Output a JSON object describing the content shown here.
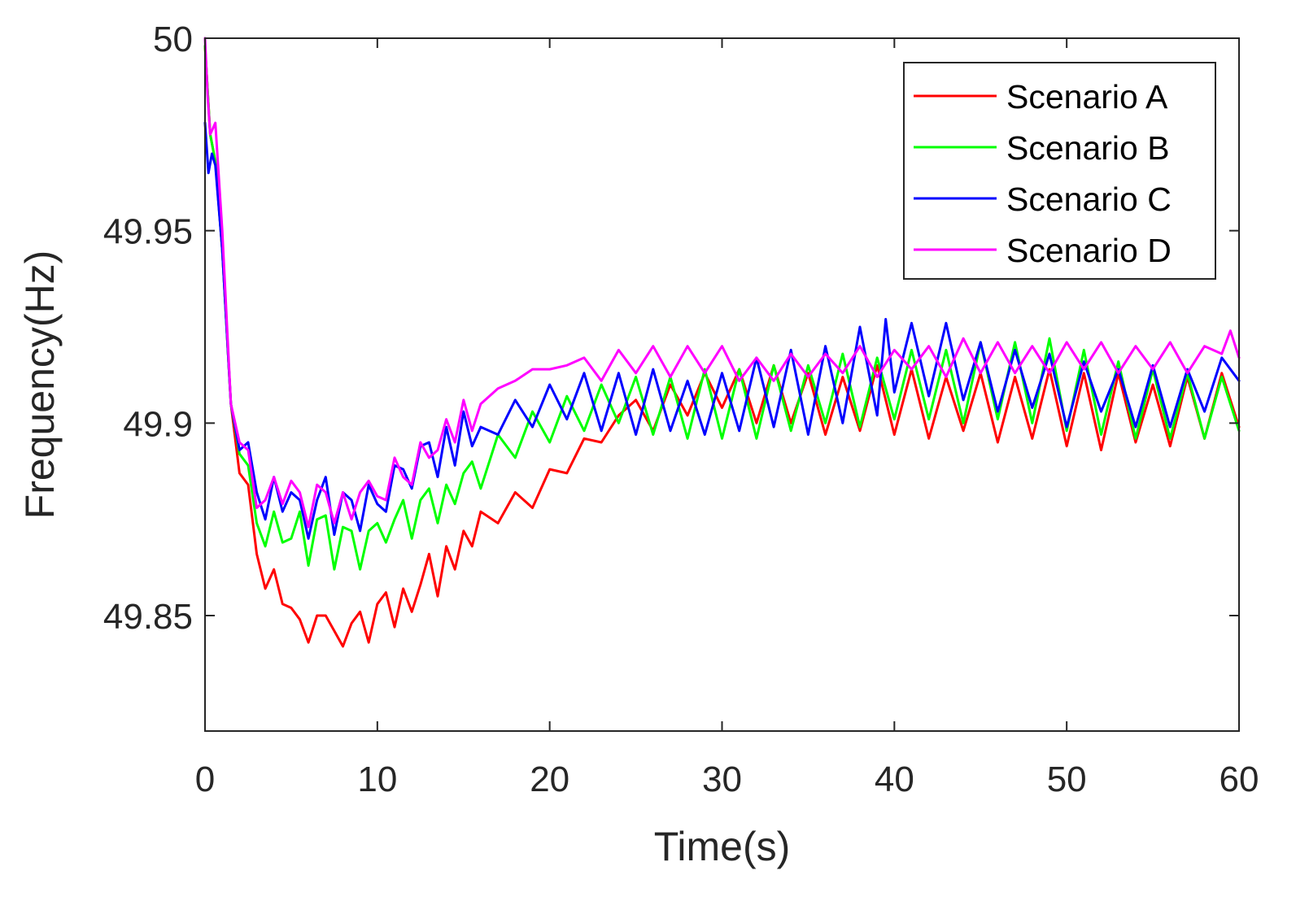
{
  "chart_data": {
    "type": "line",
    "title": "",
    "xlabel": "Time(s)",
    "ylabel": "Frequency(Hz)",
    "xlim": [
      0,
      60
    ],
    "ylim": [
      49.82,
      50
    ],
    "xticks": [
      0,
      10,
      20,
      30,
      40,
      50,
      60
    ],
    "xtick_labels": [
      "0",
      "10",
      "20",
      "30",
      "40",
      "50",
      "60"
    ],
    "yticks": [
      49.85,
      49.9,
      49.95,
      50
    ],
    "ytick_labels": [
      "49.85",
      "49.9",
      "49.95",
      "50"
    ],
    "grid": false,
    "legend_position": "top-right",
    "series": [
      {
        "name": "Scenario A",
        "color": "#ff0000",
        "x": [
          0,
          0.3,
          0.6,
          1.0,
          1.5,
          2.0,
          2.5,
          3.0,
          3.5,
          4.0,
          4.5,
          5.0,
          5.5,
          6.0,
          6.5,
          7.0,
          7.5,
          8.0,
          8.5,
          9.0,
          9.5,
          10.0,
          10.5,
          11.0,
          11.5,
          12.0,
          12.5,
          13.0,
          13.5,
          14.0,
          14.5,
          15.0,
          15.5,
          16.0,
          17.0,
          18.0,
          19.0,
          20.0,
          21.0,
          22.0,
          23.0,
          24.0,
          25.0,
          26.0,
          27.0,
          28.0,
          29.0,
          30.0,
          31.0,
          32.0,
          33.0,
          34.0,
          35.0,
          36.0,
          37.0,
          38.0,
          39.0,
          40.0,
          41.0,
          42.0,
          43.0,
          44.0,
          45.0,
          46.0,
          47.0,
          48.0,
          49.0,
          50.0,
          51.0,
          52.0,
          53.0,
          54.0,
          55.0,
          56.0,
          57.0,
          58.0,
          59.0,
          60.0
        ],
        "y": [
          49.998,
          49.975,
          49.968,
          49.945,
          49.905,
          49.887,
          49.884,
          49.866,
          49.857,
          49.862,
          49.853,
          49.852,
          49.849,
          49.843,
          49.85,
          49.85,
          49.846,
          49.842,
          49.848,
          49.851,
          49.843,
          49.853,
          49.856,
          49.847,
          49.857,
          49.851,
          49.858,
          49.866,
          49.855,
          49.868,
          49.862,
          49.872,
          49.868,
          49.877,
          49.874,
          49.882,
          49.878,
          49.888,
          49.887,
          49.896,
          49.895,
          49.902,
          49.906,
          49.898,
          49.91,
          49.902,
          49.913,
          49.904,
          49.914,
          49.9,
          49.915,
          49.9,
          49.913,
          49.897,
          49.912,
          49.898,
          49.915,
          49.897,
          49.914,
          49.896,
          49.912,
          49.898,
          49.913,
          49.895,
          49.912,
          49.896,
          49.914,
          49.894,
          49.913,
          49.893,
          49.913,
          49.895,
          49.91,
          49.894,
          49.912,
          49.896,
          49.913,
          49.899
        ]
      },
      {
        "name": "Scenario B",
        "color": "#00ff00",
        "x": [
          0,
          0.3,
          0.6,
          1.0,
          1.5,
          2.0,
          2.5,
          3.0,
          3.5,
          4.0,
          4.5,
          5.0,
          5.5,
          6.0,
          6.5,
          7.0,
          7.5,
          8.0,
          8.5,
          9.0,
          9.5,
          10.0,
          10.5,
          11.0,
          11.5,
          12.0,
          12.5,
          13.0,
          13.5,
          14.0,
          14.5,
          15.0,
          15.5,
          16.0,
          17.0,
          18.0,
          19.0,
          20.0,
          21.0,
          22.0,
          23.0,
          24.0,
          25.0,
          26.0,
          27.0,
          28.0,
          29.0,
          30.0,
          31.0,
          32.0,
          33.0,
          34.0,
          35.0,
          36.0,
          37.0,
          38.0,
          39.0,
          40.0,
          41.0,
          42.0,
          43.0,
          44.0,
          45.0,
          46.0,
          47.0,
          48.0,
          49.0,
          50.0,
          51.0,
          52.0,
          53.0,
          54.0,
          55.0,
          56.0,
          57.0,
          58.0,
          59.0,
          60.0
        ],
        "y": [
          49.998,
          49.975,
          49.968,
          49.945,
          49.905,
          49.892,
          49.889,
          49.874,
          49.868,
          49.877,
          49.869,
          49.87,
          49.877,
          49.863,
          49.875,
          49.876,
          49.862,
          49.873,
          49.872,
          49.862,
          49.872,
          49.874,
          49.869,
          49.875,
          49.88,
          49.87,
          49.88,
          49.883,
          49.874,
          49.884,
          49.879,
          49.887,
          49.89,
          49.883,
          49.897,
          49.891,
          49.903,
          49.895,
          49.907,
          49.898,
          49.91,
          49.9,
          49.912,
          49.897,
          49.912,
          49.896,
          49.914,
          49.896,
          49.914,
          49.896,
          49.915,
          49.898,
          49.915,
          49.9,
          49.918,
          49.899,
          49.917,
          49.901,
          49.919,
          49.901,
          49.919,
          49.9,
          49.921,
          49.901,
          49.921,
          49.9,
          49.922,
          49.898,
          49.919,
          49.897,
          49.916,
          49.896,
          49.914,
          49.896,
          49.913,
          49.896,
          49.912,
          49.898
        ]
      },
      {
        "name": "Scenario C",
        "color": "#0000ff",
        "x": [
          0,
          0.2,
          0.4,
          0.6,
          1.0,
          1.5,
          2.0,
          2.5,
          3.0,
          3.5,
          4.0,
          4.5,
          5.0,
          5.5,
          6.0,
          6.5,
          7.0,
          7.5,
          8.0,
          8.5,
          9.0,
          9.5,
          10.0,
          10.5,
          11.0,
          11.5,
          12.0,
          12.5,
          13.0,
          13.5,
          14.0,
          14.5,
          15.0,
          15.5,
          16.0,
          17.0,
          18.0,
          19.0,
          20.0,
          21.0,
          22.0,
          23.0,
          24.0,
          25.0,
          26.0,
          27.0,
          28.0,
          29.0,
          30.0,
          31.0,
          32.0,
          33.0,
          34.0,
          35.0,
          36.0,
          37.0,
          38.0,
          39.0,
          39.5,
          40.0,
          41.0,
          42.0,
          43.0,
          44.0,
          45.0,
          46.0,
          47.0,
          48.0,
          49.0,
          50.0,
          51.0,
          52.0,
          53.0,
          54.0,
          55.0,
          56.0,
          57.0,
          58.0,
          59.0,
          60.0
        ],
        "y": [
          49.978,
          49.965,
          49.97,
          49.967,
          49.945,
          49.905,
          49.893,
          49.895,
          49.882,
          49.875,
          49.886,
          49.877,
          49.882,
          49.88,
          49.87,
          49.88,
          49.886,
          49.871,
          49.882,
          49.88,
          49.872,
          49.884,
          49.879,
          49.877,
          49.889,
          49.888,
          49.883,
          49.894,
          49.895,
          49.886,
          49.899,
          49.889,
          49.903,
          49.894,
          49.899,
          49.897,
          49.906,
          49.899,
          49.91,
          49.901,
          49.913,
          49.898,
          49.913,
          49.897,
          49.914,
          49.898,
          49.911,
          49.897,
          49.913,
          49.898,
          49.917,
          49.899,
          49.919,
          49.897,
          49.92,
          49.9,
          49.925,
          49.902,
          49.927,
          49.908,
          49.926,
          49.907,
          49.926,
          49.906,
          49.921,
          49.903,
          49.919,
          49.904,
          49.918,
          49.899,
          49.916,
          49.903,
          49.914,
          49.899,
          49.915,
          49.899,
          49.914,
          49.903,
          49.917,
          49.911
        ]
      },
      {
        "name": "Scenario D",
        "color": "#ff00ff",
        "x": [
          0,
          0.15,
          0.3,
          0.6,
          1.0,
          1.5,
          2.0,
          2.5,
          3.0,
          3.5,
          4.0,
          4.5,
          5.0,
          5.5,
          6.0,
          6.5,
          7.0,
          7.5,
          8.0,
          8.5,
          9.0,
          9.5,
          10.0,
          10.5,
          11.0,
          11.5,
          12.0,
          12.5,
          13.0,
          13.5,
          14.0,
          14.5,
          15.0,
          15.5,
          16.0,
          17.0,
          18.0,
          19.0,
          20.0,
          21.0,
          22.0,
          23.0,
          24.0,
          25.0,
          26.0,
          27.0,
          28.0,
          29.0,
          30.0,
          31.0,
          32.0,
          33.0,
          34.0,
          35.0,
          36.0,
          37.0,
          38.0,
          39.0,
          40.0,
          41.0,
          42.0,
          43.0,
          44.0,
          45.0,
          46.0,
          47.0,
          48.0,
          49.0,
          50.0,
          51.0,
          52.0,
          53.0,
          54.0,
          55.0,
          56.0,
          57.0,
          58.0,
          59.0,
          59.5,
          60.0
        ],
        "y": [
          50.0,
          49.985,
          49.975,
          49.978,
          49.95,
          49.905,
          49.895,
          49.893,
          49.878,
          49.88,
          49.886,
          49.879,
          49.885,
          49.882,
          49.873,
          49.884,
          49.882,
          49.874,
          49.882,
          49.875,
          49.882,
          49.885,
          49.881,
          49.88,
          49.891,
          49.886,
          49.884,
          49.895,
          49.891,
          49.893,
          49.901,
          49.895,
          49.906,
          49.898,
          49.905,
          49.909,
          49.911,
          49.914,
          49.914,
          49.915,
          49.917,
          49.911,
          49.919,
          49.913,
          49.92,
          49.912,
          49.92,
          49.913,
          49.92,
          49.911,
          49.917,
          49.911,
          49.918,
          49.912,
          49.918,
          49.913,
          49.92,
          49.912,
          49.919,
          49.914,
          49.92,
          49.912,
          49.922,
          49.913,
          49.921,
          49.913,
          49.92,
          49.913,
          49.921,
          49.914,
          49.921,
          49.913,
          49.92,
          49.914,
          49.921,
          49.913,
          49.92,
          49.918,
          49.924,
          49.917
        ]
      }
    ]
  }
}
